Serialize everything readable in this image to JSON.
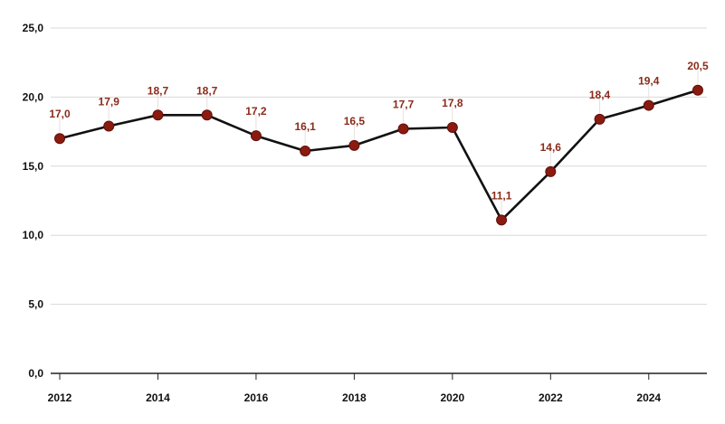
{
  "chart_data": {
    "type": "line",
    "title": "",
    "xlabel": "",
    "ylabel": "",
    "x": [
      2012,
      2013,
      2014,
      2015,
      2016,
      2017,
      2018,
      2019,
      2020,
      2021,
      2022,
      2023,
      2024,
      2025
    ],
    "series": [
      {
        "values": [
          17.0,
          17.9,
          18.7,
          18.7,
          17.2,
          16.1,
          16.5,
          17.7,
          17.8,
          11.1,
          14.6,
          18.4,
          19.4,
          20.5
        ],
        "labels": [
          "17,0",
          "17,9",
          "18,7",
          "18,7",
          "17,2",
          "16,1",
          "16,5",
          "17,7",
          "17,8",
          "11,1",
          "14,6",
          "18,4",
          "19,4",
          "20,5"
        ]
      }
    ],
    "ylim": [
      0,
      25
    ],
    "yticks": [
      0,
      5,
      10,
      15,
      20,
      25
    ],
    "ytick_labels": [
      "0,0",
      "5,0",
      "10,0",
      "15,0",
      "20,0",
      "25,0"
    ],
    "xticks": [
      2012,
      2014,
      2016,
      2018,
      2020,
      2022,
      2024
    ],
    "xtick_labels": [
      "2012",
      "2014",
      "2016",
      "2018",
      "2020",
      "2022",
      "2024"
    ],
    "grid": true,
    "legend": "none",
    "colors": {
      "line": "#111111",
      "marker": "#8b1a10",
      "marker_stroke": "#5e110a",
      "label": "#8b2a1a",
      "grid": "#d9d9d9",
      "axis": "#222222"
    }
  }
}
